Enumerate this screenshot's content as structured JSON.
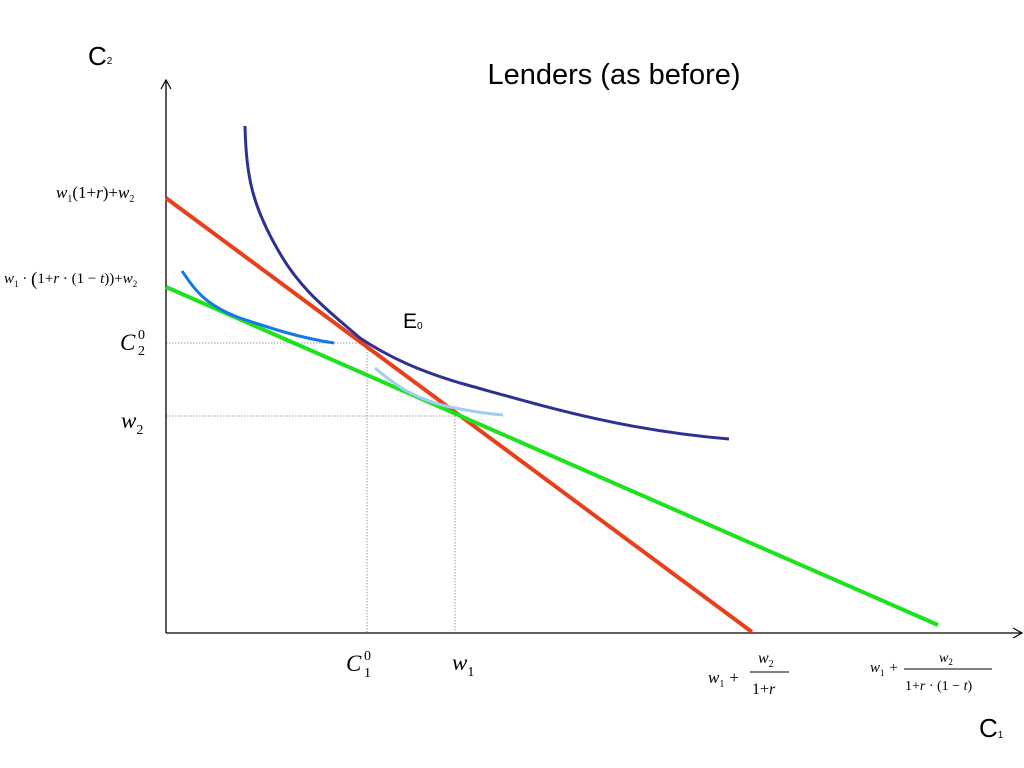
{
  "title": "Lenders (as before)",
  "axes": {
    "y_label": {
      "main": "C",
      "sub": "2"
    },
    "x_label": {
      "main": "C",
      "sub": "1"
    }
  },
  "point_label": {
    "main": "E",
    "sub": "0"
  },
  "y_ticks": {
    "top": {
      "w1": "w",
      "s1": "1",
      "mid": "(1+",
      "r": "r",
      "tail": ")+",
      "w2": "w",
      "s2": "2"
    },
    "tax": {
      "w1": "w",
      "s1": "1",
      "a": " · ",
      "b": "1+",
      "r": "r",
      "c": " · (1 − ",
      "t": "t",
      "d": "))+",
      "w2": "w",
      "s2": "2",
      "open": "("
    },
    "c20": {
      "c": "C",
      "sub": "2",
      "sup": "0"
    },
    "w2": {
      "w": "w",
      "sub": "2"
    }
  },
  "x_ticks": {
    "c10": {
      "c": "C",
      "sub": "1",
      "sup": "0"
    },
    "w1": {
      "w": "w",
      "sub": "1"
    },
    "pv": {
      "w1": "w",
      "s1": "1",
      "plus": "+",
      "num_w": "w",
      "num_s": "2",
      "den": "1+",
      "den_r": "r"
    },
    "pv_tax": {
      "w1": "w",
      "s1": "1",
      "plus": "+",
      "num_w": "w",
      "num_s": "2",
      "den": "1+",
      "den_r": "r",
      "den_mid": " · (1 − ",
      "den_t": "t",
      "den_close": ")"
    }
  },
  "colors": {
    "budget_line": "#e8401c",
    "after_tax_budget_line": "#1de21d",
    "indifference_high": "#2e3192",
    "indifference_left": "#1677e6",
    "indifference_light": "#9fcef0",
    "axis": "#000000",
    "guide": "#999999"
  }
}
